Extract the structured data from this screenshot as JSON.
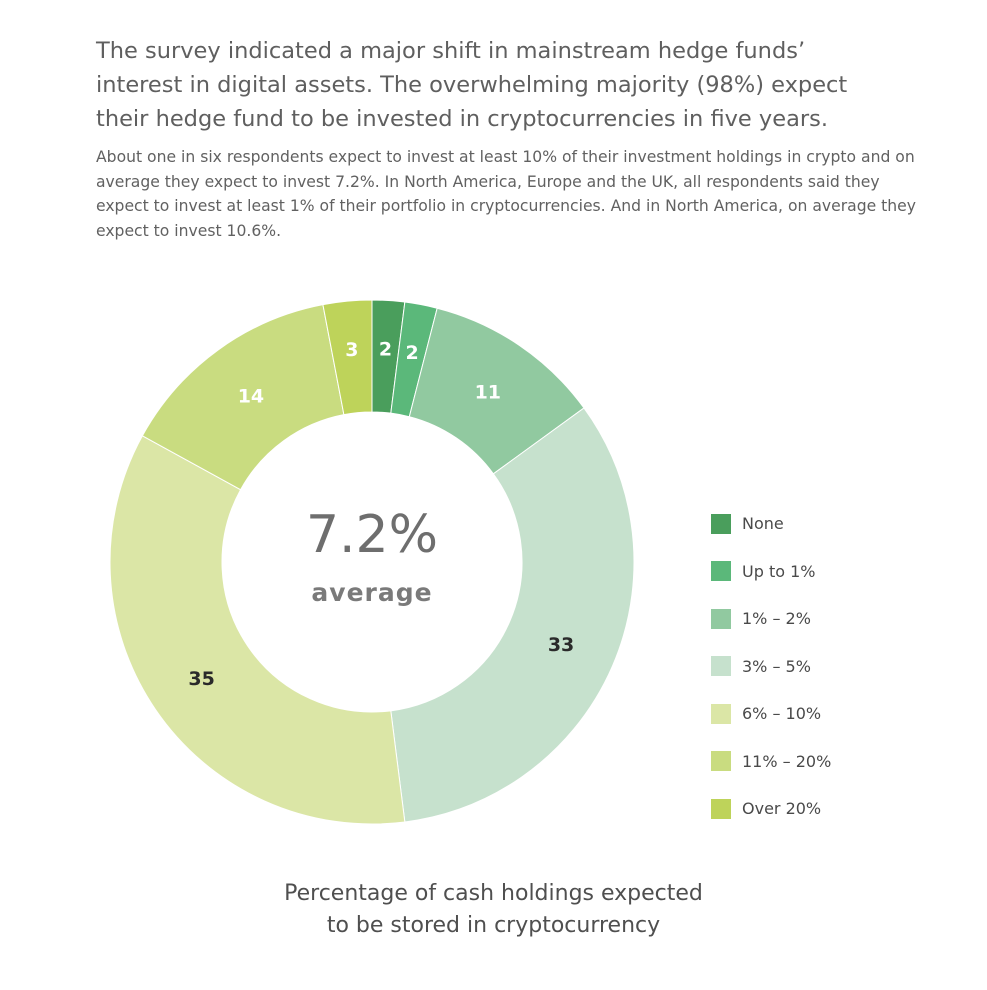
{
  "text": {
    "headline": "The survey indicated a major shift in mainstream hedge funds’ interest in digital assets. The overwhelming majority (98%) expect their hedge fund to be invested in cryptocurrencies in five years.",
    "lead": "About one in six respondents expect to invest at least 10% of their investment holdings in crypto and on average they expect to invest 7.2%. In North America, Europe and the UK, all respondents said they expect to invest at least 1% of their portfolio in cryptocurrencies. And in North America, on average they expect to invest 10.6%.",
    "center_value": "7.2%",
    "center_label": "average",
    "caption_line1": "Percentage of cash holdings expected",
    "caption_line2": "to be stored in cryptocurrency"
  },
  "chart_data": {
    "type": "pie",
    "variant": "donut",
    "title": "Percentage of cash holdings expected to be stored in cryptocurrency",
    "categories": [
      "None",
      "Up to 1%",
      "1% – 2%",
      "3% – 5%",
      "6% – 10%",
      "11% – 20%",
      "Over 20%"
    ],
    "values": [
      2,
      2,
      11,
      33,
      35,
      14,
      3
    ],
    "colors": [
      "#4a9e5c",
      "#5bb87a",
      "#91c9a0",
      "#c6e1cd",
      "#dbe6a6",
      "#c9dc80",
      "#bed35a"
    ],
    "label_colors": [
      "#ffffff",
      "#ffffff",
      "#ffffff",
      "#2a2a2a",
      "#2a2a2a",
      "#ffffff",
      "#ffffff"
    ],
    "center_annotation": "7.2% average",
    "legend_position": "right"
  }
}
